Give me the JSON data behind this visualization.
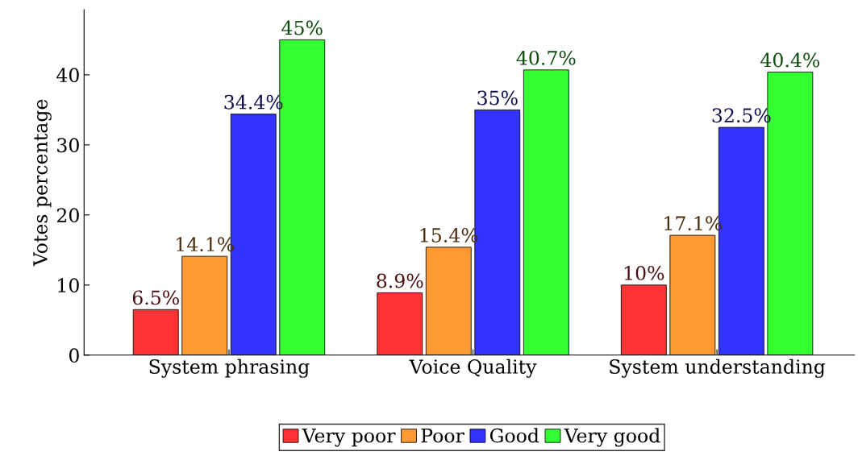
{
  "chart_data": {
    "type": "bar",
    "ylabel": "Votes percentage",
    "categories": [
      "System phrasing",
      "Voice Quality",
      "System understanding"
    ],
    "series": [
      {
        "name": "Very poor",
        "color": "#ff3333",
        "values": [
          6.5,
          8.9,
          10
        ],
        "value_labels": [
          "6.5%",
          "8.9%",
          "10%"
        ]
      },
      {
        "name": "Poor",
        "color": "#ff9933",
        "values": [
          14.1,
          15.4,
          17.1
        ],
        "value_labels": [
          "14.1%",
          "15.4%",
          "17.1%"
        ]
      },
      {
        "name": "Good",
        "color": "#3333ff",
        "values": [
          34.4,
          35,
          32.5
        ],
        "value_labels": [
          "34.4%",
          "35%",
          "32.5%"
        ]
      },
      {
        "name": "Very good",
        "color": "#33ff33",
        "values": [
          45,
          40.7,
          40.4
        ],
        "value_labels": [
          "45%",
          "40.7%",
          "40.4%"
        ]
      }
    ],
    "ylim": [
      0,
      49.3
    ],
    "yticks": [
      0,
      10,
      20,
      30,
      40
    ],
    "grid": false,
    "legend": "bottom"
  }
}
